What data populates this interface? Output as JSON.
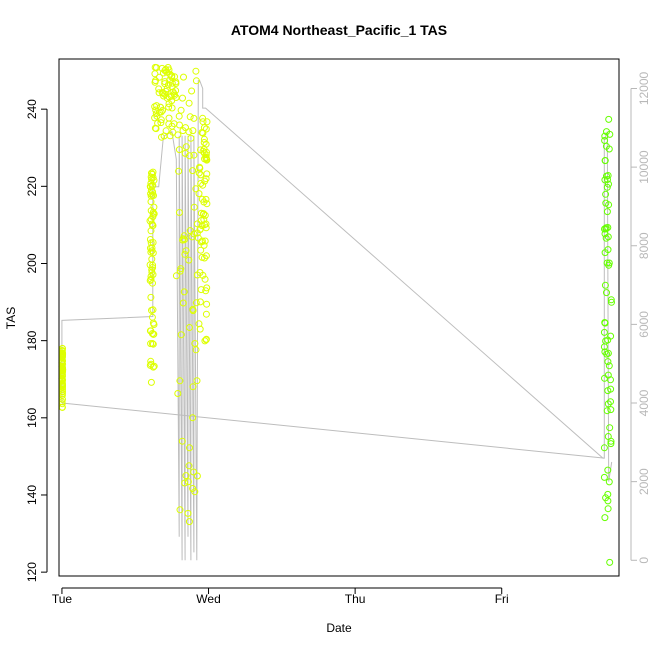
{
  "chart_data": {
    "type": "scatter",
    "title": "ATOM4 Northeast_Pacific_1 TAS",
    "xlabel": "Date",
    "ylabel": "TAS",
    "x_categories": [
      "Tue",
      "Wed",
      "Thu",
      "Fri"
    ],
    "xlim": [
      -0.02,
      3.8
    ],
    "ylim": [
      119,
      253
    ],
    "y_ticks": [
      120,
      140,
      160,
      180,
      200,
      220,
      240
    ],
    "y2_ticks": [
      0,
      2000,
      4000,
      6000,
      8000,
      10000,
      12000
    ],
    "y2lim": [
      -400,
      12750
    ],
    "grid": false,
    "legend": "none",
    "colors": {
      "points_early": "#ddff00",
      "points_late": "#66ff00",
      "altitude_line": "#bdbdbd",
      "axis": "#000000",
      "right_axis": "#b8b8b8"
    },
    "series": [
      {
        "kind": "points",
        "clusters": [
          {
            "x_start": 0.0,
            "x_end": 0.005,
            "y_min": 162,
            "y_max": 178
          },
          {
            "x_start": 0.6,
            "x_end": 0.63,
            "y_min": 166,
            "y_max": 224
          },
          {
            "x_start": 0.63,
            "x_end": 0.78,
            "y_min": 232,
            "y_max": 251
          },
          {
            "x_start": 0.78,
            "x_end": 0.93,
            "y_min": 130,
            "y_max": 250
          },
          {
            "x_start": 0.93,
            "x_end": 0.99,
            "y_min": 176,
            "y_max": 238
          },
          {
            "x_start": 3.7,
            "x_end": 3.75,
            "y_min": 121,
            "y_max": 242
          }
        ]
      },
      {
        "kind": "altitude-line",
        "axis": "right",
        "x": [
          0.0,
          0.0,
          0.0,
          0.62,
          0.62,
          0.66,
          0.69,
          0.7,
          0.75,
          0.78,
          0.8,
          0.8,
          0.82,
          0.82,
          0.84,
          0.84,
          0.86,
          0.86,
          0.88,
          0.88,
          0.9,
          0.9,
          0.92,
          0.93,
          0.94,
          0.96,
          0.96,
          0.98,
          3.69,
          3.7,
          3.7,
          3.72,
          3.73,
          3.75
        ],
        "y": [
          4000,
          6100,
          6100,
          6200,
          9500,
          9500,
          10700,
          10800,
          10900,
          10200,
          600,
          10800,
          0,
          10800,
          0,
          10800,
          600,
          10800,
          0,
          10800,
          200,
          10800,
          0,
          12200,
          12200,
          12000,
          11500,
          11500,
          2600,
          2600,
          10700,
          10900,
          2000,
          2500
        ]
      },
      {
        "kind": "trend-line",
        "axis": "right",
        "x": [
          0.0,
          3.7
        ],
        "y": [
          4000,
          2600
        ]
      }
    ]
  }
}
